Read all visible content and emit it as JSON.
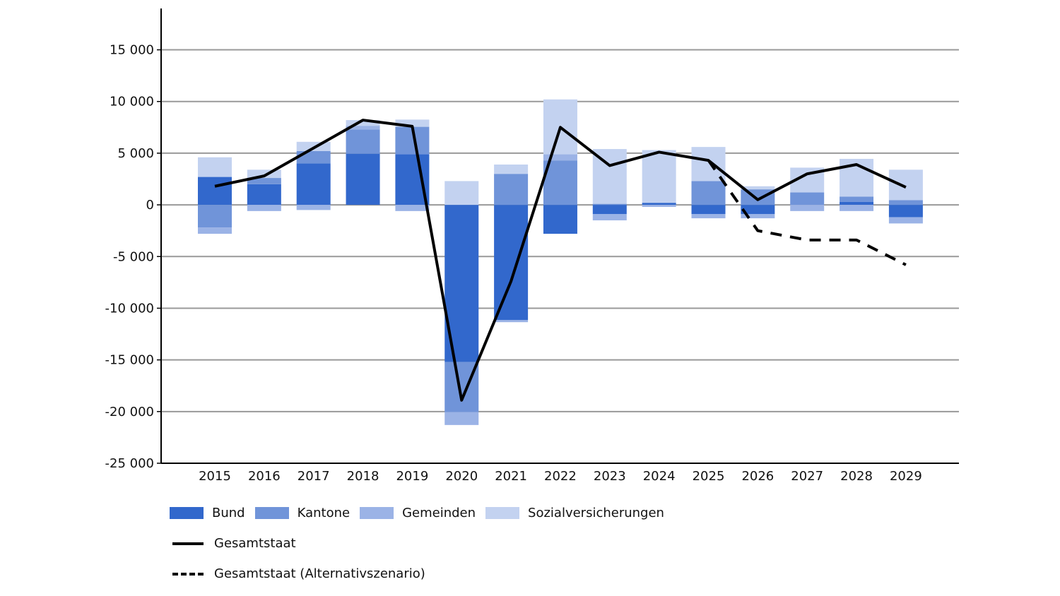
{
  "chart_data": {
    "type": "bar",
    "stacked": true,
    "title": "",
    "xlabel": "",
    "ylabel": "",
    "ylim": [
      -25000,
      19000
    ],
    "yticks": [
      -25000,
      -20000,
      -15000,
      -10000,
      -5000,
      0,
      5000,
      10000,
      15000
    ],
    "ytick_labels": [
      "-25 000",
      "-20 000",
      "-15 000",
      "-10 000",
      "-5 000",
      "0",
      "5 000",
      "10 000",
      "15 000"
    ],
    "grid": true,
    "legend_placement": "bottom",
    "categories": [
      "2015",
      "2016",
      "2017",
      "2018",
      "2019",
      "2020",
      "2021",
      "2022",
      "2023",
      "2024",
      "2025",
      "2026",
      "2027",
      "2028",
      "2029"
    ],
    "series": [
      {
        "name": "Bund",
        "color": "#3268cc",
        "values": [
          2700,
          2000,
          4000,
          4950,
          4900,
          -15200,
          -11150,
          -2800,
          -900,
          200,
          -900,
          -900,
          0,
          300,
          -1200
        ]
      },
      {
        "name": "Kantone",
        "color": "#7094d9",
        "values": [
          -2200,
          600,
          1200,
          2350,
          2650,
          -4850,
          3000,
          4300,
          100,
          0,
          2300,
          1500,
          1200,
          500,
          450
        ]
      },
      {
        "name": "Gemeinden",
        "color": "#9bb3e6",
        "values": [
          -600,
          -600,
          -500,
          350,
          -600,
          -1250,
          -200,
          600,
          -600,
          -200,
          -400,
          -400,
          -600,
          -600,
          -600
        ]
      },
      {
        "name": "Sozialversicherungen",
        "color": "#c3d2f0",
        "values": [
          1900,
          800,
          900,
          550,
          700,
          2300,
          900,
          5300,
          5300,
          5100,
          3300,
          300,
          2400,
          3650,
          2950
        ]
      }
    ],
    "lines": [
      {
        "name": "Gesamtstaat",
        "style": "solid",
        "color": "#000000",
        "values": [
          1800,
          2800,
          5500,
          8200,
          7600,
          -18900,
          -7400,
          7500,
          3800,
          5100,
          4300,
          500,
          3000,
          3900,
          1700
        ]
      },
      {
        "name": "Gesamtstaat (Alternativszenario)",
        "style": "dashed",
        "color": "#000000",
        "values": [
          null,
          null,
          null,
          null,
          null,
          null,
          null,
          null,
          null,
          null,
          4300,
          -2500,
          -3400,
          -3400,
          -5800
        ]
      }
    ]
  }
}
